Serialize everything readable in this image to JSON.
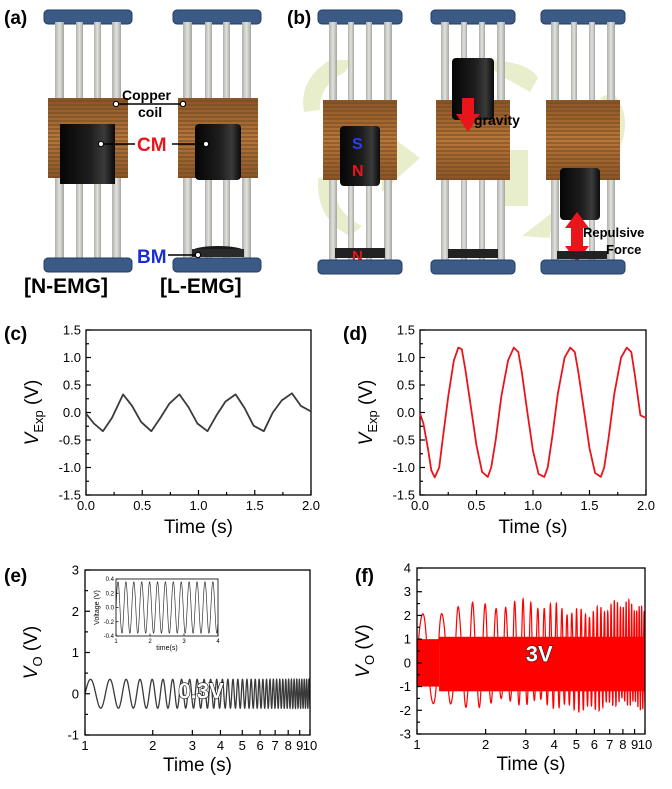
{
  "panel_labels": {
    "a": "(a)",
    "b": "(b)",
    "c": "(c)",
    "d": "(d)",
    "e": "(e)",
    "f": "(f)"
  },
  "annotations": {
    "copper_coil_line1": "Copper",
    "copper_coil_line2": "coil",
    "cm": "CM",
    "bm": "BM",
    "n_emg": "[N-EMG]",
    "l_emg": "[L-EMG]",
    "pole_s": "S",
    "pole_n_upper": "N",
    "pole_n_lower": "N",
    "gravity": "gravity",
    "repulsive_line1": "Repulsive",
    "repulsive_line2": "Force"
  },
  "colors": {
    "cm_label": "#e8161b",
    "bm_label": "#1a2cd6",
    "pole_s": "#2b3ef0",
    "pole_n": "#e8161b",
    "arrow": "#e8161b",
    "coil": "#a8652c",
    "cap": "#3c5a86",
    "series_c": "#3a3a3a",
    "series_d": "#e8161b",
    "series_e": "#3a3a3a",
    "series_f": "#ff0000"
  },
  "chart_data": [
    {
      "id": "c",
      "type": "line",
      "xlabel": "Time (s)",
      "ylabel_main": "V",
      "ylabel_sub": "Exp",
      "ylabel_unit": "(V)",
      "xlim": [
        0.0,
        2.0
      ],
      "ylim": [
        -1.5,
        1.5
      ],
      "xticks": [
        "0.0",
        "0.5",
        "1.0",
        "1.5",
        "2.0"
      ],
      "yticks": [
        "-1.5",
        "-1.0",
        "-0.5",
        "0.0",
        "0.5",
        "1.0",
        "1.5"
      ],
      "series": [
        {
          "x": [
            0.0,
            0.07,
            0.15,
            0.23,
            0.33,
            0.41,
            0.49,
            0.58,
            0.66,
            0.74,
            0.83,
            0.91,
            0.99,
            1.08,
            1.16,
            1.24,
            1.33,
            1.41,
            1.49,
            1.58,
            1.66,
            1.74,
            1.83,
            1.91,
            2.0
          ],
          "y": [
            -0.02,
            -0.2,
            -0.34,
            -0.1,
            0.33,
            0.12,
            -0.17,
            -0.34,
            -0.1,
            0.16,
            0.33,
            0.1,
            -0.2,
            -0.34,
            -0.05,
            0.2,
            0.33,
            0.08,
            -0.24,
            -0.34,
            0.0,
            0.22,
            0.35,
            0.12,
            0.02
          ]
        }
      ]
    },
    {
      "id": "d",
      "type": "line",
      "xlabel": "Time (s)",
      "ylabel_main": "V",
      "ylabel_sub": "Exp",
      "ylabel_unit": "(V)",
      "xlim": [
        0.0,
        2.0
      ],
      "ylim": [
        -1.5,
        1.5
      ],
      "xticks": [
        "0.0",
        "0.5",
        "1.0",
        "1.5",
        "2.0"
      ],
      "yticks": [
        "-1.5",
        "-1.0",
        "-0.5",
        "0.0",
        "0.5",
        "1.0",
        "1.5"
      ],
      "series": [
        {
          "x": [
            0.0,
            0.03,
            0.07,
            0.1,
            0.13,
            0.17,
            0.2,
            0.25,
            0.3,
            0.34,
            0.37,
            0.4,
            0.45,
            0.5,
            0.55,
            0.6,
            0.63,
            0.67,
            0.72,
            0.78,
            0.83,
            0.87,
            0.9,
            0.95,
            1.0,
            1.05,
            1.1,
            1.13,
            1.17,
            1.22,
            1.28,
            1.33,
            1.37,
            1.4,
            1.45,
            1.5,
            1.55,
            1.6,
            1.63,
            1.67,
            1.72,
            1.78,
            1.83,
            1.87,
            1.9,
            1.95,
            2.0
          ],
          "y": [
            -0.02,
            -0.2,
            -0.65,
            -1.05,
            -1.18,
            -1.0,
            -0.5,
            0.3,
            0.95,
            1.18,
            1.15,
            0.8,
            0.1,
            -0.6,
            -1.08,
            -1.17,
            -1.0,
            -0.5,
            0.3,
            0.95,
            1.18,
            1.1,
            0.75,
            0.0,
            -0.7,
            -1.12,
            -1.17,
            -1.0,
            -0.45,
            0.35,
            1.0,
            1.18,
            1.1,
            0.75,
            0.05,
            -0.65,
            -1.1,
            -1.17,
            -1.0,
            -0.45,
            0.35,
            1.0,
            1.18,
            1.1,
            0.7,
            -0.05,
            -0.1
          ]
        }
      ]
    },
    {
      "id": "e",
      "type": "line",
      "xscale": "log",
      "xlabel": "Time (s)",
      "ylabel_main": "V",
      "ylabel_sub": "O",
      "ylabel_unit": "(V)",
      "xlim": [
        1,
        10
      ],
      "ylim": [
        -1,
        3
      ],
      "xticks": [
        "1",
        "2",
        "3",
        "4",
        "5",
        "6",
        "7",
        "8",
        "9",
        "10"
      ],
      "yticks": [
        "-1",
        "0",
        "1",
        "2",
        "3"
      ],
      "amplitude": 0.35,
      "annotation": "0.3V",
      "inset": {
        "xlabel": "time(s)",
        "ylabel": "Voltage (V)",
        "xlim": [
          1,
          4
        ],
        "ylim": [
          -0.4,
          0.4
        ],
        "xticks": [
          "1",
          "2",
          "3",
          "4"
        ],
        "yticks": [
          "-0.4",
          "-0.2",
          "0.0",
          "0.2",
          "0.4"
        ]
      }
    },
    {
      "id": "f",
      "type": "line",
      "xscale": "log",
      "xlabel": "Time (s)",
      "ylabel_main": "V",
      "ylabel_sub": "O",
      "ylabel_unit": "(V)",
      "xlim": [
        1,
        10
      ],
      "ylim": [
        -3,
        4
      ],
      "xticks": [
        "1",
        "2",
        "3",
        "4",
        "5",
        "6",
        "7",
        "8",
        "9",
        "10"
      ],
      "yticks": [
        "-3",
        "-2",
        "-1",
        "0",
        "1",
        "2",
        "3",
        "4"
      ],
      "upper_envelope": 2.7,
      "lower_envelope": -2.1,
      "annotation": "3V"
    }
  ]
}
